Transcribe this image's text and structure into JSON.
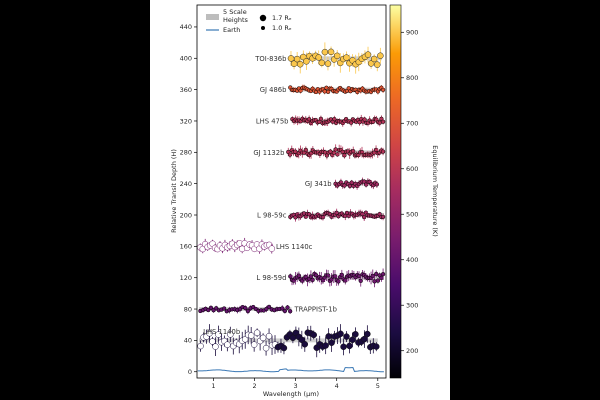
{
  "chart_data": {
    "type": "scatter",
    "xlabel": "Wavelength (μm)",
    "ylabel": "Relative Transit Depth (H)",
    "xlim": [
      0.6,
      5.2
    ],
    "ylim": [
      -8,
      468
    ],
    "xticks": [
      1,
      2,
      3,
      4,
      5
    ],
    "yticks": [
      0,
      40,
      80,
      120,
      160,
      200,
      240,
      280,
      320,
      360,
      400,
      440
    ],
    "colorbar": {
      "label": "Equilibrium Temperature (K)",
      "range": [
        140,
        960
      ],
      "ticks": [
        200,
        300,
        400,
        500,
        600,
        700,
        800,
        900
      ],
      "colormap": "inferno"
    },
    "legend": {
      "scale_heights": "5 Scale\nHeights",
      "earth": "Earth",
      "size_large": "1.7 Rₑ",
      "size_small": "1.0 Rₑ"
    },
    "planets": [
      {
        "name": "TOI-836b",
        "offset": 400,
        "teq": 900,
        "large": true,
        "x_range": [
          2.85,
          5.1
        ],
        "n": 30,
        "scatter": 9,
        "err": 9
      },
      {
        "name": "GJ 486b",
        "offset": 360,
        "teq": 700,
        "large": false,
        "x_range": [
          2.85,
          5.15
        ],
        "n": 55,
        "scatter": 3,
        "err": 3
      },
      {
        "name": "LHS 475b",
        "offset": 320,
        "teq": 580,
        "large": false,
        "x_range": [
          2.9,
          5.15
        ],
        "n": 55,
        "scatter": 3,
        "err": 4
      },
      {
        "name": "GJ 1132b",
        "offset": 280,
        "teq": 580,
        "large": false,
        "x_range": [
          2.8,
          5.15
        ],
        "n": 55,
        "scatter": 4,
        "err": 5
      },
      {
        "name": "GJ 341b",
        "offset": 240,
        "teq": 540,
        "large": false,
        "x_range": [
          3.95,
          5.0
        ],
        "n": 24,
        "scatter": 3,
        "err": 4
      },
      {
        "name": "L 98-59c",
        "offset": 200,
        "teq": 550,
        "large": false,
        "x_range": [
          2.85,
          5.15
        ],
        "n": 55,
        "scatter": 3,
        "err": 4
      },
      {
        "name": "LHS 1140c",
        "offset": 160,
        "teq": 440,
        "large": true,
        "x_range": [
          0.65,
          2.45
        ],
        "n": 30,
        "scatter": 4,
        "err": 5
      },
      {
        "name": "L 98-59d",
        "offset": 120,
        "teq": 420,
        "large": false,
        "x_range": [
          2.85,
          5.15
        ],
        "n": 55,
        "scatter": 5,
        "err": 6
      },
      {
        "name": "TRAPPIST-1b",
        "offset": 80,
        "teq": 400,
        "large": false,
        "x_range": [
          0.65,
          2.9
        ],
        "n": 35,
        "scatter": 3,
        "err": 3
      },
      {
        "name": "LHS 1140b",
        "offset": 40,
        "teq": 230,
        "large": true,
        "x_range": [
          0.65,
          5.0
        ],
        "n": 60,
        "scatter": 10,
        "err": 9
      }
    ]
  }
}
